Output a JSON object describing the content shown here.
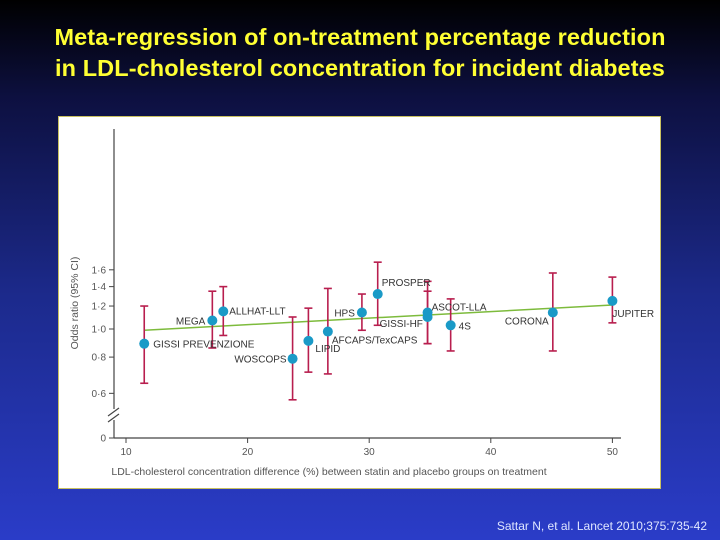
{
  "title": {
    "line1": "Meta-regression of on-treatment percentage reduction",
    "line2": "in LDL-cholesterol concentration for incident diabetes"
  },
  "citation": "Sattar N, et al. Lancet 2010;375:735-42",
  "colors": {
    "title": "#ffff33",
    "point": "#1a9ac7",
    "error_bar": "#b81e4e",
    "trend_line": "#7dbb3c",
    "axis": "#444444"
  },
  "chart_data": {
    "type": "scatter",
    "title": "",
    "xlabel": "LDL-cholesterol concentration difference (%) between statin and placebo groups on treatment",
    "ylabel": "Odds ratio (95% CI)",
    "xlim": [
      9,
      52
    ],
    "x_ticks": [
      10,
      20,
      30,
      40,
      50
    ],
    "y_scale": "log (broken axis at 0)",
    "y_ticks": [
      {
        "value": 1.6,
        "label": "1·6"
      },
      {
        "value": 1.4,
        "label": "1·4"
      },
      {
        "value": 1.2,
        "label": "1·2"
      },
      {
        "value": 1.0,
        "label": "1·0"
      },
      {
        "value": 0.8,
        "label": "0·8"
      },
      {
        "value": 0.6,
        "label": "0·6"
      },
      {
        "value": 0,
        "label": "0"
      }
    ],
    "trend_line": {
      "x": [
        11.5,
        50
      ],
      "y": [
        0.99,
        1.21
      ]
    },
    "points": [
      {
        "label": "GISSI PREVENZIONE",
        "x": 11.5,
        "y": 0.89,
        "lo": 0.65,
        "hi": 1.2
      },
      {
        "label": "MEGA",
        "x": 17.1,
        "y": 1.07,
        "lo": 0.86,
        "hi": 1.35
      },
      {
        "label": "ALLHAT-LLT",
        "x": 18.0,
        "y": 1.15,
        "lo": 0.95,
        "hi": 1.4
      },
      {
        "label": "WOSCOPS",
        "x": 23.7,
        "y": 0.79,
        "lo": 0.57,
        "hi": 1.1
      },
      {
        "label": "LIPID",
        "x": 25.0,
        "y": 0.91,
        "lo": 0.71,
        "hi": 1.18
      },
      {
        "label": "AFCAPS/TexCAPS",
        "x": 26.6,
        "y": 0.98,
        "lo": 0.7,
        "hi": 1.38
      },
      {
        "label": "HPS",
        "x": 29.4,
        "y": 1.14,
        "lo": 0.99,
        "hi": 1.32
      },
      {
        "label": "PROSPER",
        "x": 30.7,
        "y": 1.32,
        "lo": 1.03,
        "hi": 1.7
      },
      {
        "label": "ASCOT-LLA",
        "x": 34.8,
        "y": 1.14,
        "lo": 0.89,
        "hi": 1.46
      },
      {
        "label": "GISSI-HF",
        "x": 34.8,
        "y": 1.1,
        "lo": 0.89,
        "hi": 1.35
      },
      {
        "label": "4S",
        "x": 36.7,
        "y": 1.03,
        "lo": 0.84,
        "hi": 1.27
      },
      {
        "label": "CORONA",
        "x": 45.1,
        "y": 1.14,
        "lo": 0.84,
        "hi": 1.56
      },
      {
        "label": "JUPITER",
        "x": 50.0,
        "y": 1.25,
        "lo": 1.05,
        "hi": 1.51
      }
    ]
  }
}
